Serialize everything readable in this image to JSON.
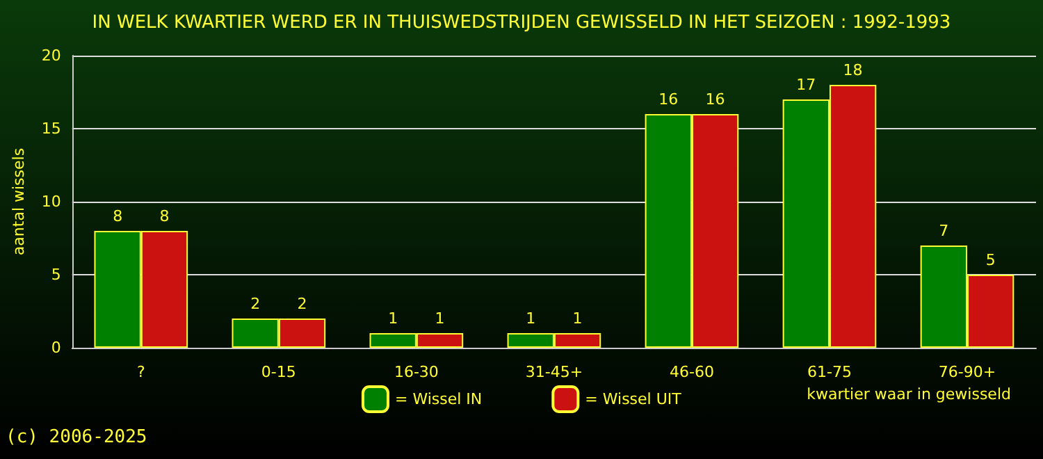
{
  "chart_data": {
    "type": "bar",
    "title": "IN WELK KWARTIER WERD ER IN THUISWEDSTRIJDEN GEWISSELD IN HET SEIZOEN : 1992-1993",
    "ylabel": "aantal wissels",
    "xlabel": "kwartier waar in gewisseld",
    "categories": [
      "?",
      "0-15",
      "16-30",
      "31-45+",
      "46-60",
      "61-75",
      "76-90+"
    ],
    "series": [
      {
        "name": "= Wissel IN",
        "color": "#008000",
        "values": [
          8,
          2,
          1,
          1,
          16,
          17,
          7
        ]
      },
      {
        "name": "= Wissel UIT",
        "color": "#cc1111",
        "values": [
          8,
          2,
          1,
          1,
          16,
          18,
          5
        ]
      }
    ],
    "ylim": [
      0,
      20
    ],
    "yticks": [
      0,
      5,
      10,
      15,
      20
    ],
    "grid": "y",
    "legend": "bottom",
    "data_labels": true,
    "annotations": [
      "(c) 2006-2025"
    ]
  }
}
